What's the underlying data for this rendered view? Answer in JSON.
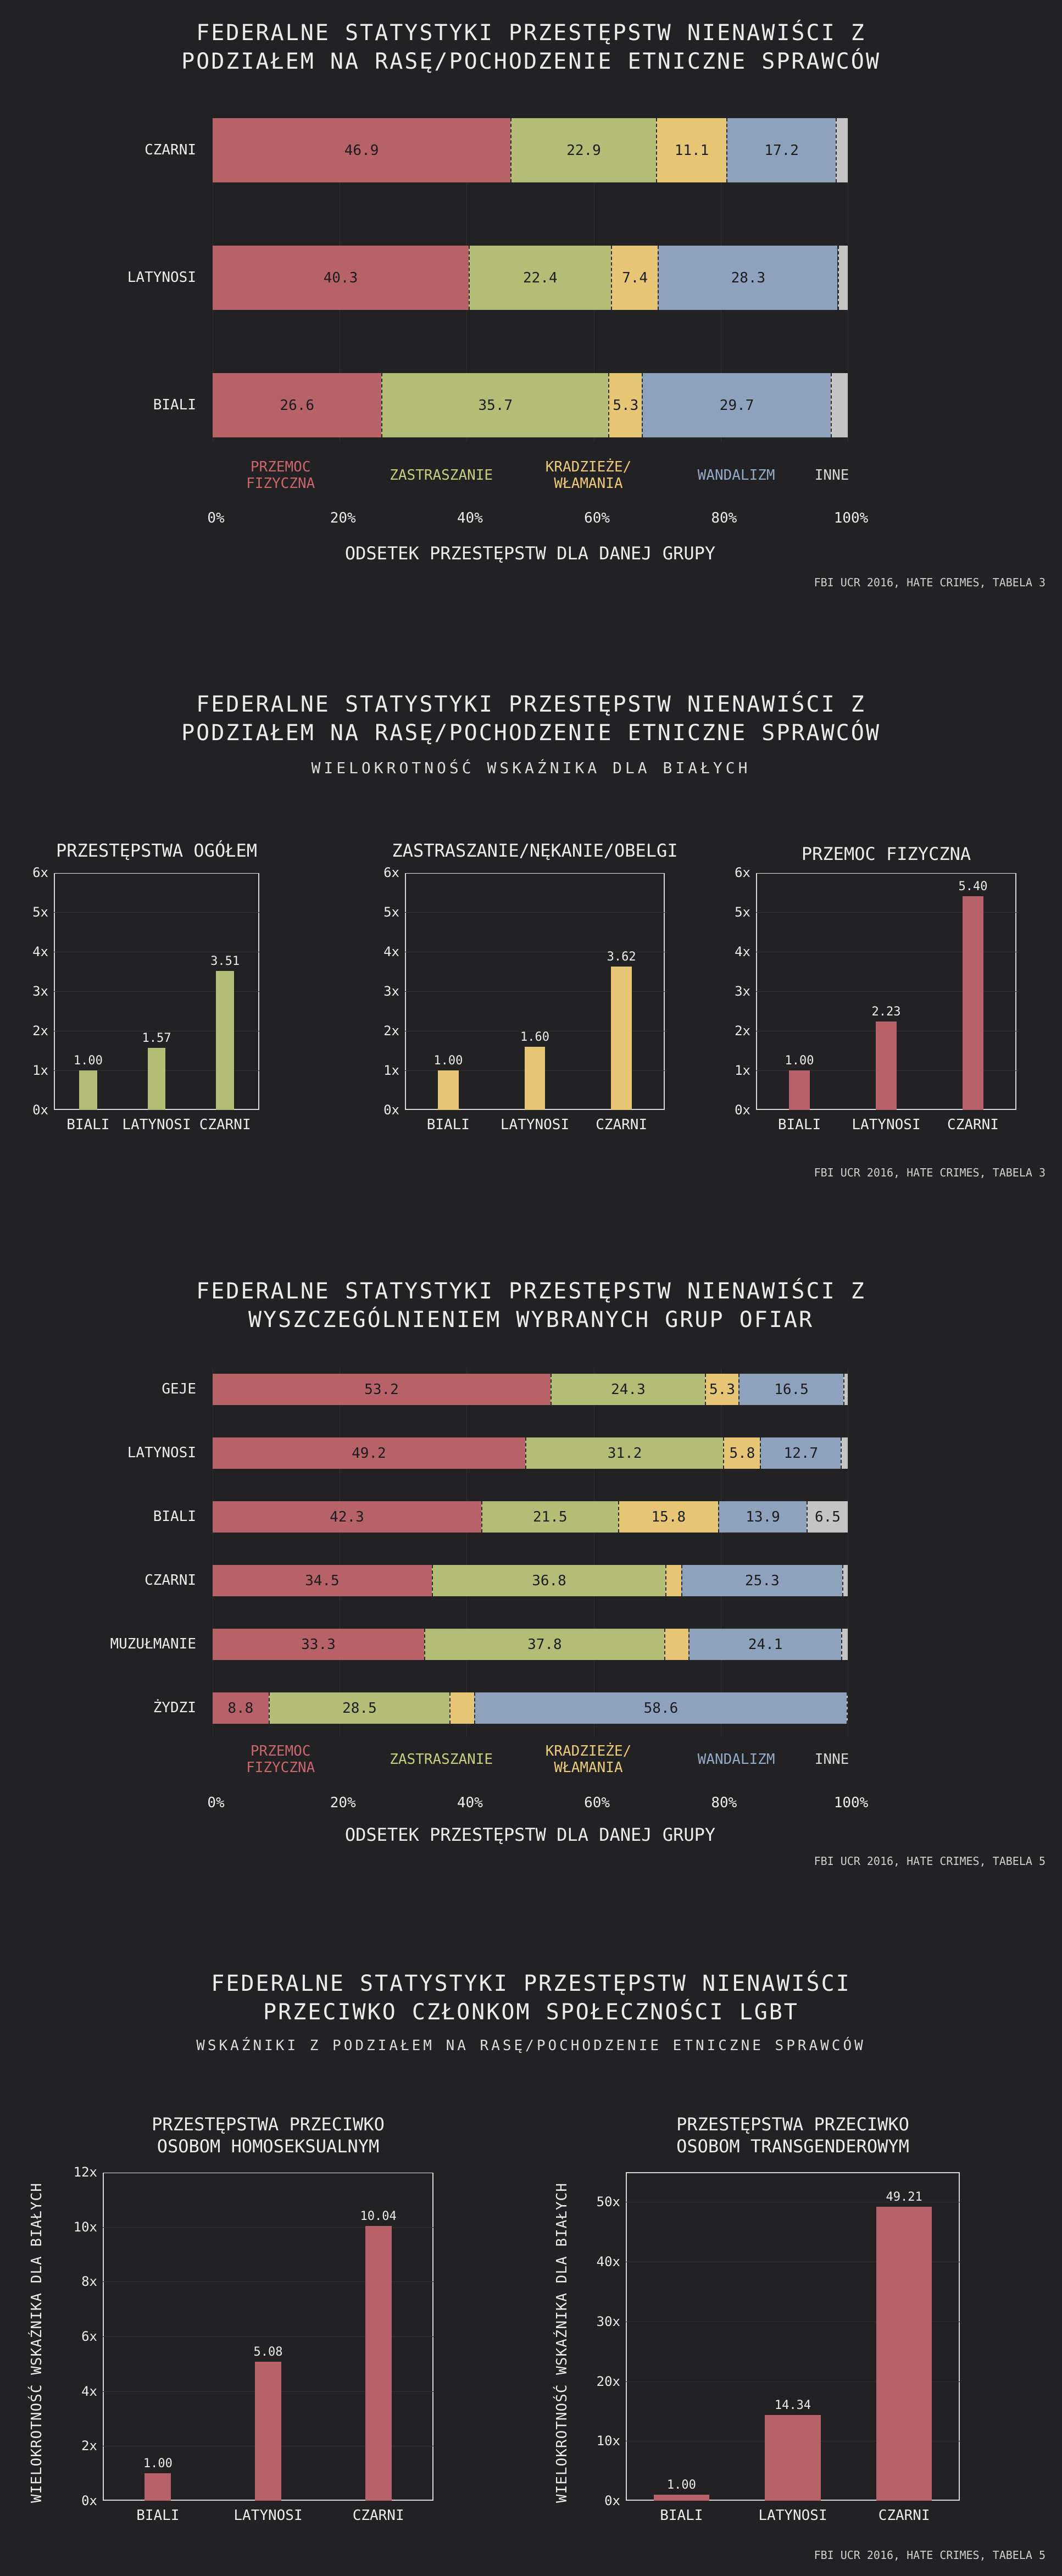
{
  "colors": {
    "przemoc": "#b76268",
    "zastraszanie": "#b4bd75",
    "kradzieze": "#e6c675",
    "wandalizm": "#8ea2bd",
    "inne": "#c4c4c4",
    "background": "#222224"
  },
  "legend": [
    {
      "key": "przemoc",
      "label": "PRZEMOC\nFIZYCZNA",
      "color": "#c9666d"
    },
    {
      "key": "zastraszanie",
      "label": "ZASTRASZANIE",
      "color": "#c7cd7c"
    },
    {
      "key": "kradzieze",
      "label": "KRADZIEŻE/\nWŁAMANIA",
      "color": "#ecc97a"
    },
    {
      "key": "wandalizm",
      "label": "WANDALIZM",
      "color": "#93a9c6"
    },
    {
      "key": "inne",
      "label": "INNE",
      "color": "#d6d6d6"
    }
  ],
  "chart1": {
    "title": "FEDERALNE STATYSTYKI PRZESTĘPSTW NIENAWIŚCI Z\nPODZIAŁEM NA RASĘ/POCHODZENIE ETNICZNE SPRAWCÓW",
    "xlabel": "ODSETEK PRZESTĘPSTW DLA DANEJ GRUPY",
    "source": "FBI UCR 2016, HATE CRIMES, TABELA 3",
    "xticks": [
      "0%",
      "20%",
      "40%",
      "60%",
      "80%",
      "100%"
    ]
  },
  "chart2": {
    "title": "FEDERALNE STATYSTYKI PRZESTĘPSTW NIENAWIŚCI Z\nPODZIAŁEM NA RASĘ/POCHODZENIE ETNICZNE SPRAWCÓW",
    "subtitle": "WIELOKROTNOŚĆ WSKAŹNIKA DLA BIAŁYCH",
    "source": "FBI UCR 2016, HATE CRIMES, TABELA 3",
    "yticks": [
      "0x",
      "1x",
      "2x",
      "3x",
      "4x",
      "5x",
      "6x"
    ]
  },
  "chart3": {
    "title": "FEDERALNE STATYSTYKI PRZESTĘPSTW NIENAWIŚCI Z\nWYSZCZEGÓLNIENIEM WYBRANYCH GRUP OFIAR",
    "xlabel": "ODSETEK PRZESTĘPSTW DLA DANEJ GRUPY",
    "source": "FBI UCR 2016, HATE CRIMES, TABELA 5",
    "xticks": [
      "0%",
      "20%",
      "40%",
      "60%",
      "80%",
      "100%"
    ]
  },
  "chart4": {
    "title": "FEDERALNE STATYSTYKI PRZESTĘPSTW NIENAWIŚCI\nPRZECIWKO CZŁONKOM SPOŁECZNOŚCI LGBT",
    "subtitle": "WSKAŹNIKI Z PODZIAŁEM NA RASĘ/POCHODZENIE ETNICZNE SPRAWCÓW",
    "source": "FBI UCR 2016, HATE CRIMES, TABELA 5",
    "ylabel": "WIELOKROTNOŚĆ WSKAŹNIKA DLA BIAŁYCH"
  },
  "chart_data": [
    {
      "type": "bar",
      "orientation": "horizontal-stacked",
      "title": "FEDERALNE STATYSTYKI PRZESTĘPSTW NIENAWIŚCI Z PODZIAŁEM NA RASĘ/POCHODZENIE ETNICZNE SPRAWCÓW",
      "xlabel": "ODSETEK PRZESTĘPSTW DLA DANEJ GRUPY",
      "xlim": [
        0,
        100
      ],
      "categories": [
        "CZARNI",
        "LATYNOSI",
        "BIALI"
      ],
      "series": [
        {
          "name": "PRZEMOC FIZYCZNA",
          "values": [
            46.9,
            40.3,
            26.6
          ]
        },
        {
          "name": "ZASTRASZANIE",
          "values": [
            22.9,
            22.4,
            35.7
          ]
        },
        {
          "name": "KRADZIEŻE/WŁAMANIA",
          "values": [
            11.1,
            7.4,
            5.3
          ]
        },
        {
          "name": "WANDALIZM",
          "values": [
            17.2,
            28.3,
            29.7
          ]
        },
        {
          "name": "INNE",
          "values": [
            1.9,
            1.6,
            2.7
          ]
        }
      ]
    },
    {
      "type": "bar",
      "title": "PRZESTĘPSTWA OGÓŁEM",
      "categories": [
        "BIALI",
        "LATYNOSI",
        "CZARNI"
      ],
      "values": [
        1.0,
        1.57,
        3.51
      ],
      "value_labels": [
        "1.00",
        "1.57",
        "3.51"
      ],
      "ylim": [
        0,
        6
      ],
      "color": "#b4bd75"
    },
    {
      "type": "bar",
      "title": "ZASTRASZANIE/NĘKANIE/OBELGI",
      "categories": [
        "BIALI",
        "LATYNOSI",
        "CZARNI"
      ],
      "values": [
        1.0,
        1.6,
        3.62
      ],
      "value_labels": [
        "1.00",
        "1.60",
        "3.62"
      ],
      "ylim": [
        0,
        6
      ],
      "color": "#e6c675"
    },
    {
      "type": "bar",
      "title": "PRZEMOC FIZYCZNA",
      "categories": [
        "BIALI",
        "LATYNOSI",
        "CZARNI"
      ],
      "values": [
        1.0,
        2.23,
        5.4
      ],
      "value_labels": [
        "1.00",
        "2.23",
        "5.40"
      ],
      "ylim": [
        0,
        6
      ],
      "color": "#b76268"
    },
    {
      "type": "bar",
      "orientation": "horizontal-stacked",
      "title": "FEDERALNE STATYSTYKI PRZESTĘPSTW NIENAWIŚCI Z WYSZCZEGÓLNIENIEM WYBRANYCH GRUP OFIAR",
      "xlabel": "ODSETEK PRZESTĘPSTW DLA DANEJ GRUPY",
      "xlim": [
        0,
        100
      ],
      "categories": [
        "GEJE",
        "LATYNOSI",
        "BIALI",
        "CZARNI",
        "MUZUŁMANIE",
        "ŻYDZI"
      ],
      "series": [
        {
          "name": "PRZEMOC FIZYCZNA",
          "values": [
            53.2,
            49.2,
            42.3,
            34.5,
            33.3,
            8.8
          ]
        },
        {
          "name": "ZASTRASZANIE",
          "values": [
            24.3,
            31.2,
            21.5,
            36.8,
            37.8,
            28.5
          ]
        },
        {
          "name": "KRADZIEŻE/WŁAMANIA",
          "values": [
            5.3,
            5.8,
            15.8,
            2.5,
            3.8,
            3.9
          ]
        },
        {
          "name": "WANDALIZM",
          "values": [
            16.5,
            12.7,
            13.9,
            25.3,
            24.1,
            58.6
          ]
        },
        {
          "name": "INNE",
          "values": [
            0.7,
            1.1,
            6.5,
            0.9,
            1.0,
            0.2
          ]
        }
      ],
      "value_labels": [
        [
          "53.2",
          "24.3",
          "5.3",
          "16.5",
          ""
        ],
        [
          "49.2",
          "31.2",
          "5.8",
          "12.7",
          ""
        ],
        [
          "42.3",
          "21.5",
          "15.8",
          "13.9",
          "6.5"
        ],
        [
          "34.5",
          "36.8",
          "",
          "25.3",
          ""
        ],
        [
          "33.3",
          "37.8",
          "",
          "24.1",
          ""
        ],
        [
          "8.8",
          "28.5",
          "",
          "58.6",
          ""
        ]
      ]
    },
    {
      "type": "bar",
      "title": "PRZESTĘPSTWA PRZECIWKO\nOSOBOM HOMOSEKSUALNYM",
      "ylabel": "WIELOKROTNOŚĆ WSKAŹNIKA DLA BIAŁYCH",
      "categories": [
        "BIALI",
        "LATYNOSI",
        "CZARNI"
      ],
      "values": [
        1.0,
        5.08,
        10.04
      ],
      "value_labels": [
        "1.00",
        "5.08",
        "10.04"
      ],
      "ylim": [
        0,
        12
      ],
      "yticks": [
        "0x",
        "2x",
        "4x",
        "6x",
        "8x",
        "10x",
        "12x"
      ],
      "color": "#b76268"
    },
    {
      "type": "bar",
      "title": "PRZESTĘPSTWA PRZECIWKO\nOSOBOM TRANSGENDEROWYM",
      "ylabel": "WIELOKROTNOŚĆ WSKAŹNIKA DLA BIAŁYCH",
      "categories": [
        "BIALI",
        "LATYNOSI",
        "CZARNI"
      ],
      "values": [
        1.0,
        14.34,
        49.21
      ],
      "value_labels": [
        "1.00",
        "14.34",
        "49.21"
      ],
      "ylim": [
        0,
        55
      ],
      "yticks": [
        "0x",
        "10x",
        "20x",
        "30x",
        "40x",
        "50x"
      ],
      "color": "#b76268"
    }
  ]
}
